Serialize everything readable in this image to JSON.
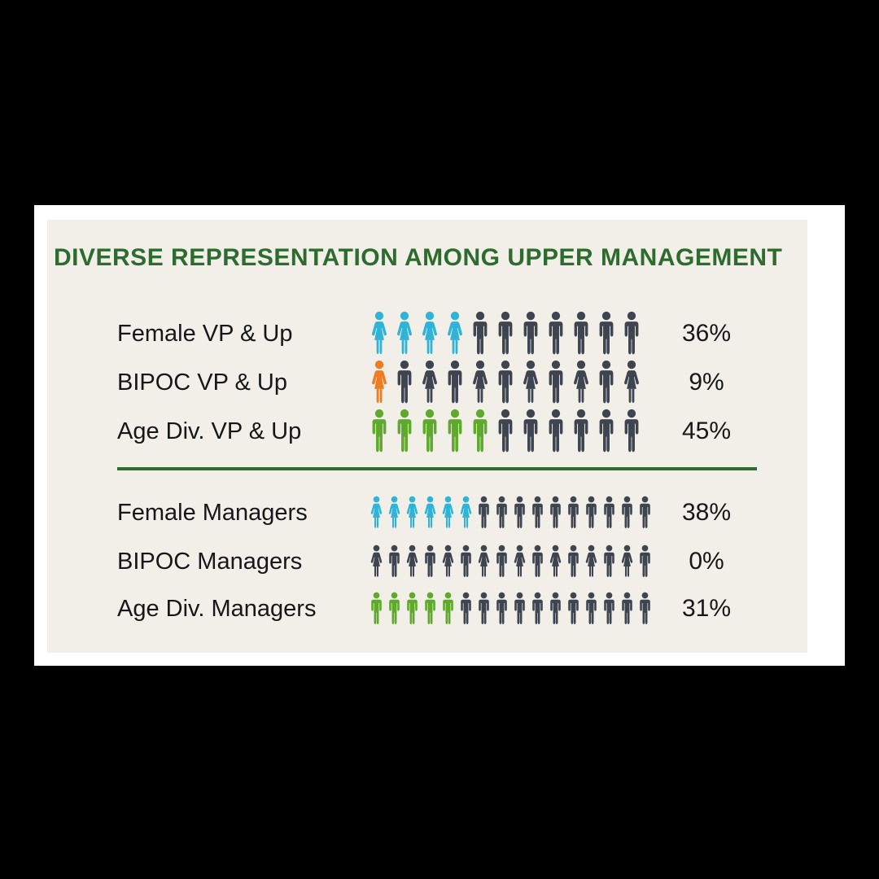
{
  "page": {
    "background": "#000000",
    "card_bg": "#ffffff",
    "panel_bg": "#f1efe8"
  },
  "title": {
    "text": "DIVERSE REPRESENTATION AMONG UPPER MANAGEMENT",
    "color": "#2e6b2f"
  },
  "colors": {
    "female_highlight": "#2fb4d8",
    "bipoc_highlight": "#f07c20",
    "age_highlight": "#5fa92c",
    "neutral": "#3e4450",
    "divider": "#2e6b2f"
  },
  "chart_data": {
    "type": "pictogram",
    "title": "DIVERSE REPRESENTATION AMONG UPPER MANAGEMENT",
    "groups": [
      {
        "name": "vp-and-up",
        "icon_size": "large",
        "rows": [
          {
            "label": "Female VP & Up",
            "percent": "36%",
            "total": 11,
            "highlighted": 4,
            "highlight_color": "#2fb4d8",
            "pattern": "FFFFMMMMMMM"
          },
          {
            "label": "BIPOC VP & Up",
            "percent": "9%",
            "total": 11,
            "highlighted": 1,
            "highlight_color": "#f07c20",
            "pattern": "FMFMFMFMFMF"
          },
          {
            "label": "Age Div. VP & Up",
            "percent": "45%",
            "total": 11,
            "highlighted": 5,
            "highlight_color": "#5fa92c",
            "pattern": "MMMMMMMMMMM"
          }
        ]
      },
      {
        "name": "managers",
        "icon_size": "small",
        "rows": [
          {
            "label": "Female Managers",
            "percent": "38%",
            "total": 16,
            "highlighted": 6,
            "highlight_color": "#2fb4d8",
            "pattern": "FFFFFFMMMMMMMMMM"
          },
          {
            "label": "BIPOC Managers",
            "percent": "0%",
            "total": 16,
            "highlighted": 0,
            "highlight_color": "#f07c20",
            "pattern": "FMFMFMFMFMFMFMFM"
          },
          {
            "label": "Age Div. Managers",
            "percent": "31%",
            "total": 16,
            "highlighted": 5,
            "highlight_color": "#5fa92c",
            "pattern": "MMMMMMMMMMMMMMMM"
          }
        ]
      }
    ]
  }
}
